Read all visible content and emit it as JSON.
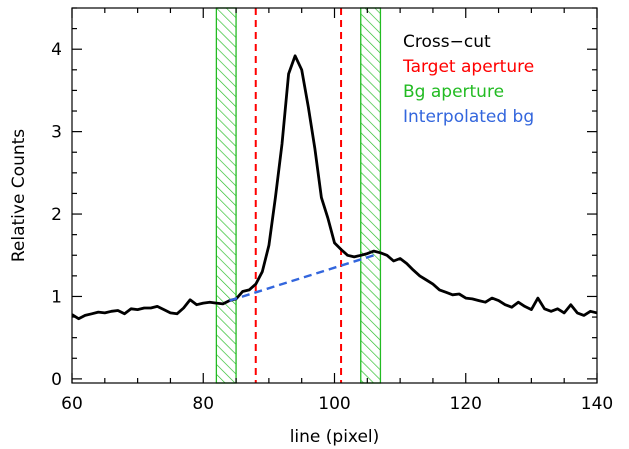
{
  "chart_data": {
    "type": "line",
    "title": "",
    "xlabel": "line (pixel)",
    "ylabel": "Relative Counts",
    "xlim": [
      60,
      140
    ],
    "ylim": [
      -0.05,
      4.5
    ],
    "x_ticks": [
      60,
      80,
      100,
      120,
      140
    ],
    "y_ticks": [
      0,
      1,
      2,
      3,
      4
    ],
    "grid": false,
    "legend_position": "top-right",
    "legend": [
      {
        "label": "Cross−cut",
        "color": "#000000"
      },
      {
        "label": "Target aperture",
        "color": "#ff0000"
      },
      {
        "label": "Bg aperture",
        "color": "#22bb22"
      },
      {
        "label": "Interpolated bg",
        "color": "#3366dd"
      }
    ],
    "series": [
      {
        "name": "Cross−cut",
        "color": "#000000",
        "x": [
          60,
          61,
          62,
          63,
          64,
          65,
          66,
          67,
          68,
          69,
          70,
          71,
          72,
          73,
          74,
          75,
          76,
          77,
          78,
          79,
          80,
          81,
          82,
          83,
          84,
          85,
          86,
          87,
          88,
          89,
          90,
          91,
          92,
          93,
          94,
          95,
          96,
          97,
          98,
          99,
          100,
          101,
          102,
          103,
          104,
          105,
          106,
          107,
          108,
          109,
          110,
          111,
          112,
          113,
          114,
          115,
          116,
          117,
          118,
          119,
          120,
          121,
          122,
          123,
          124,
          125,
          126,
          127,
          128,
          129,
          130,
          131,
          132,
          133,
          134,
          135,
          136,
          137,
          138,
          139,
          140
        ],
        "y": [
          0.78,
          0.73,
          0.77,
          0.79,
          0.81,
          0.8,
          0.82,
          0.83,
          0.79,
          0.85,
          0.84,
          0.86,
          0.86,
          0.88,
          0.84,
          0.8,
          0.79,
          0.86,
          0.96,
          0.9,
          0.92,
          0.93,
          0.92,
          0.91,
          0.95,
          0.97,
          1.06,
          1.08,
          1.15,
          1.3,
          1.62,
          2.2,
          2.85,
          3.7,
          3.92,
          3.75,
          3.3,
          2.8,
          2.2,
          1.95,
          1.65,
          1.57,
          1.5,
          1.48,
          1.5,
          1.52,
          1.55,
          1.53,
          1.5,
          1.43,
          1.46,
          1.4,
          1.32,
          1.25,
          1.2,
          1.15,
          1.08,
          1.05,
          1.02,
          1.03,
          0.98,
          0.97,
          0.95,
          0.93,
          0.98,
          0.95,
          0.9,
          0.87,
          0.93,
          0.88,
          0.84,
          0.98,
          0.85,
          0.82,
          0.85,
          0.8,
          0.9,
          0.8,
          0.77,
          0.82,
          0.8
        ]
      },
      {
        "name": "Interpolated bg",
        "color": "#3366dd",
        "x": [
          84,
          106
        ],
        "y": [
          0.95,
          1.5
        ]
      }
    ],
    "target_aperture": [
      88,
      101
    ],
    "bg_apertures": [
      [
        82,
        85
      ],
      [
        104,
        107
      ]
    ]
  }
}
